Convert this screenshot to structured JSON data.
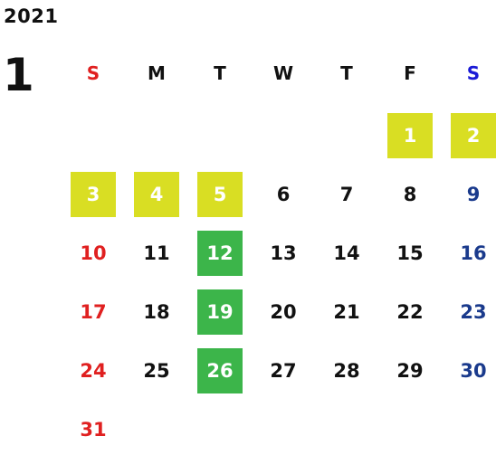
{
  "calendar": {
    "year": "2021",
    "month": "1",
    "weekday_headers": [
      {
        "label": "S",
        "color": "#e02020"
      },
      {
        "label": "M",
        "color": "#111111"
      },
      {
        "label": "T",
        "color": "#111111"
      },
      {
        "label": "W",
        "color": "#111111"
      },
      {
        "label": "T",
        "color": "#111111"
      },
      {
        "label": "F",
        "color": "#111111"
      },
      {
        "label": "S",
        "color": "#1a1ad6"
      }
    ],
    "first_weekday_index": 5,
    "days_in_month": 31,
    "colors": {
      "sunday": "#e02020",
      "saturday": "#1a3a8c",
      "weekday": "#111111",
      "highlight_yellow": "#d9de23",
      "highlight_green": "#3cb54a",
      "highlight_text": "#ffffff"
    },
    "highlight_yellow_days": [
      1,
      2,
      3,
      4,
      5
    ],
    "highlight_green_days": [
      12,
      19,
      26
    ]
  }
}
